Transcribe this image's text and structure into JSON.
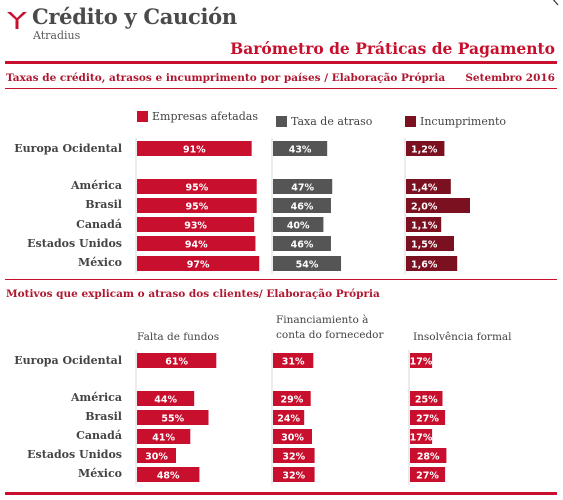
{
  "header": {
    "logo_title": "Crédito y Caución",
    "logo_subtitle": "Atradius",
    "title": "Barómetro de Práticas de Pagamento",
    "brand_color": "#c8102e"
  },
  "chart_data": [
    {
      "type": "bar",
      "title": "Taxas de crédito, atrasos e incumprimento por países / Elaboração Própria",
      "date": "Setembro 2016",
      "categories": [
        "Europa Ocidental",
        "América",
        "Brasil",
        "Canadá",
        "Estados Unidos",
        "México"
      ],
      "series": [
        {
          "name": "Empresas afetadas",
          "color": "#c8102e",
          "values": [
            91,
            95,
            95,
            93,
            94,
            97
          ],
          "labels": [
            "91%",
            "95%",
            "95%",
            "93%",
            "94%",
            "97%"
          ],
          "max": 100
        },
        {
          "name": "Taxa de atraso",
          "color": "#555555",
          "values": [
            43,
            47,
            46,
            40,
            46,
            54
          ],
          "labels": [
            "43%",
            "47%",
            "46%",
            "40%",
            "46%",
            "54%"
          ],
          "max": 100
        },
        {
          "name": "Incumprimento",
          "color": "#7a1020",
          "values": [
            1.2,
            1.4,
            2.0,
            1.1,
            1.5,
            1.6
          ],
          "labels": [
            "1,2%",
            "1,4%",
            "2,0%",
            "1,1%",
            "1,5%",
            "1,6%"
          ],
          "max": 2.5
        }
      ]
    },
    {
      "type": "bar",
      "title": "Motivos que explicam o atraso dos clientes/ Elaboração Própria",
      "categories": [
        "Europa Ocidental",
        "América",
        "Brasil",
        "Canadá",
        "Estados Unidos",
        "México"
      ],
      "series": [
        {
          "name": "Falta de fundos",
          "color": "#c8102e",
          "values": [
            61,
            44,
            55,
            41,
            30,
            48
          ],
          "labels": [
            "61%",
            "44%",
            "55%",
            "41%",
            "30%",
            "48%"
          ],
          "max": 100
        },
        {
          "name": "Financiamiento à conta do fornecedor",
          "color": "#c8102e",
          "values": [
            31,
            29,
            24,
            30,
            32,
            32
          ],
          "labels": [
            "31%",
            "29%",
            "24%",
            "30%",
            "32%",
            "32%"
          ],
          "max": 100
        },
        {
          "name": "Insolvência formal",
          "color": "#c8102e",
          "values": [
            17,
            25,
            27,
            17,
            28,
            27
          ],
          "labels": [
            "17%",
            "25%",
            "27%",
            "17%",
            "28%",
            "27%"
          ],
          "max": 100
        }
      ]
    }
  ]
}
